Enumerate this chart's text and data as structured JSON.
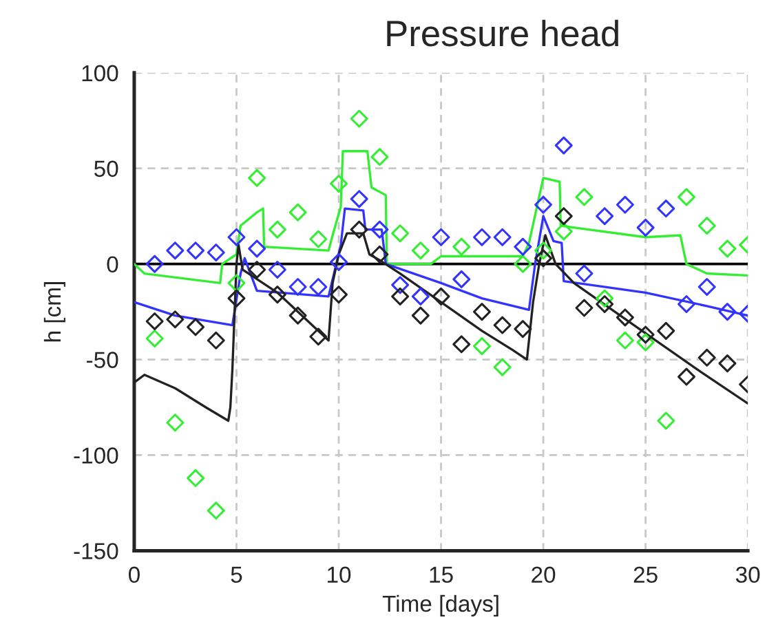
{
  "chart_data": {
    "type": "line",
    "title": "Pressure head",
    "xlabel": "Time [days]",
    "ylabel": "h [cm]",
    "xlim": [
      0,
      30
    ],
    "xticks": [
      0,
      5,
      10,
      15,
      20,
      25,
      30
    ],
    "ylim": [
      -150,
      100
    ],
    "yticks": [
      -150,
      -100,
      -50,
      0,
      50,
      100
    ],
    "grid": true,
    "legend": false,
    "ref_lines": [
      {
        "axis": "y",
        "value": 0,
        "color": "#000000",
        "line_style": "solid"
      }
    ],
    "series": [
      {
        "color": "#33ee33",
        "x": [
          0,
          0.5,
          4.2,
          4.3,
          5,
          5.2,
          6,
          6.3,
          6.35,
          9.5,
          9.7,
          10.1,
          10.2,
          11.4,
          11.6,
          12.3,
          12.35,
          14.5,
          15,
          19,
          19.3,
          20,
          20.8,
          20.85,
          25,
          26.7,
          27,
          28,
          30
        ],
        "values": [
          0,
          -5,
          -10,
          0,
          5,
          20,
          27,
          29,
          9,
          7,
          15,
          30,
          59,
          59,
          40,
          36,
          0,
          0,
          4,
          4,
          11,
          45,
          43,
          20,
          14,
          15,
          0,
          -5,
          -6
        ]
      },
      {
        "color": "#3333ff",
        "x": [
          0,
          2,
          4.8,
          5.2,
          5.4,
          6,
          9.5,
          10.1,
          10.3,
          11.2,
          11.3,
          12.1,
          12.3,
          15,
          17,
          19.3,
          19.6,
          20,
          20.5,
          20.9,
          21,
          25,
          28,
          30
        ],
        "values": [
          -20,
          -27,
          -32,
          -5,
          3,
          -14,
          -17,
          10,
          29,
          28,
          18,
          18,
          0,
          -10,
          -18,
          -24,
          0,
          25,
          12,
          11,
          -9,
          -15,
          -22,
          -27
        ]
      },
      {
        "color": "#222222",
        "x": [
          0,
          0.5,
          2,
          3.5,
          4.6,
          4.7,
          4.8,
          5,
          5.1,
          5.3,
          7,
          8.5,
          9.5,
          9.7,
          10,
          10.4,
          11.2,
          11.5,
          12,
          13,
          15,
          17,
          18.5,
          19.2,
          19.5,
          19.8,
          20.1,
          20.6,
          21.5,
          23.5,
          25.5,
          27.5,
          30
        ],
        "values": [
          -62,
          -58,
          -65,
          -75,
          -82,
          -75,
          -55,
          0,
          10,
          -3,
          -15,
          -30,
          -40,
          -10,
          5,
          16,
          16,
          5,
          2,
          -5,
          -20,
          -35,
          -45,
          -50,
          -20,
          0,
          15,
          0,
          -10,
          -25,
          -40,
          -55,
          -73
        ]
      },
      {
        "type": "scatter",
        "marker": "diamond",
        "color": "#33ee33",
        "x": [
          1,
          2,
          3,
          4,
          5,
          6,
          7,
          8,
          9,
          10,
          11,
          12,
          13,
          14,
          16,
          17,
          18,
          19,
          20,
          21,
          22,
          23,
          24,
          25,
          26,
          27,
          28,
          29,
          30
        ],
        "values": [
          -39,
          -83,
          -112,
          -129,
          -10,
          45,
          18,
          27,
          13,
          42,
          76,
          56,
          16,
          7,
          9,
          -43,
          -54,
          0,
          7,
          17,
          35,
          -18,
          -40,
          -41,
          -82,
          35,
          20,
          8,
          10
        ]
      },
      {
        "type": "scatter",
        "marker": "diamond",
        "color": "#3333ff",
        "x": [
          1,
          2,
          3,
          4,
          5,
          6,
          7,
          8,
          9,
          10,
          11,
          12,
          13,
          14,
          15,
          16,
          17,
          18,
          19,
          20,
          21,
          22,
          23,
          24,
          25,
          26,
          27,
          28,
          29,
          30
        ],
        "values": [
          0,
          7,
          7,
          6,
          14,
          8,
          -3,
          -12,
          -12,
          1,
          34,
          18,
          -11,
          -17,
          14,
          -8,
          14,
          14,
          9,
          31,
          62,
          -5,
          25,
          31,
          19,
          29,
          -21,
          -12,
          -25,
          -26
        ]
      },
      {
        "type": "scatter",
        "marker": "diamond",
        "color": "#222222",
        "x": [
          1,
          2,
          3,
          4,
          5,
          6,
          7,
          8,
          9,
          10,
          11,
          12,
          13,
          14,
          15,
          16,
          17,
          18,
          19,
          20,
          21,
          22,
          23,
          24,
          25,
          26,
          27,
          28,
          29,
          30
        ],
        "values": [
          -30,
          -29,
          -33,
          -40,
          -18,
          -3,
          -16,
          -27,
          -38,
          -16,
          18,
          5,
          -17,
          -27,
          -17,
          -42,
          -25,
          -32,
          -34,
          3,
          25,
          -23,
          -21,
          -28,
          -37,
          -35,
          -59,
          -49,
          -52,
          -63
        ]
      }
    ]
  }
}
